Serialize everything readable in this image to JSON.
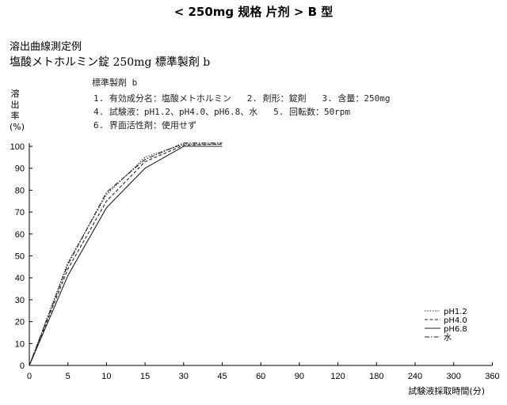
{
  "header": "< 250mg 规格  片剂 >  B 型",
  "text": {
    "line1": "溶出曲線測定例",
    "line2": "塩酸メトホルミン錠 250mg   標準製剤 b"
  },
  "conditions": {
    "title": "標準製剤 b",
    "row1": "1. 有効成分名：塩酸メトホルミン   2. 剤形：錠剤   3. 含量：250mg",
    "row2": "4. 試験液：pH1.2、pH4.0、pH6.8、水   5. 回転数：50rpm",
    "row3": "6. 界面活性剤：使用せず"
  },
  "chart_data": {
    "type": "line",
    "ylabel": "溶出率(%)",
    "xlabel": "試験液採取時間(分)",
    "ylim": [
      0,
      100
    ],
    "yticks": [
      0,
      10,
      20,
      30,
      40,
      50,
      60,
      70,
      80,
      90,
      100
    ],
    "x_ticks": [
      "0",
      "5",
      "10",
      "15",
      "30",
      "45",
      "60",
      "90",
      "120",
      "180",
      "240",
      "300",
      "360"
    ],
    "x": [
      0,
      5,
      10,
      15,
      30,
      45
    ],
    "series": [
      {
        "name": "pH1.2",
        "style": "dotted",
        "values": [
          0,
          47,
          78,
          95,
          101,
          101
        ]
      },
      {
        "name": "pH4.0",
        "style": "dashed",
        "values": [
          0,
          44,
          75,
          93,
          100.5,
          101
        ]
      },
      {
        "name": "pH6.8",
        "style": "solid",
        "values": [
          0,
          41,
          72,
          90,
          100,
          100
        ]
      },
      {
        "name": "水",
        "style": "dashdot",
        "values": [
          0,
          46,
          79,
          94,
          101.5,
          101.5
        ]
      }
    ],
    "grid": false,
    "legend_position": "lower-right"
  }
}
